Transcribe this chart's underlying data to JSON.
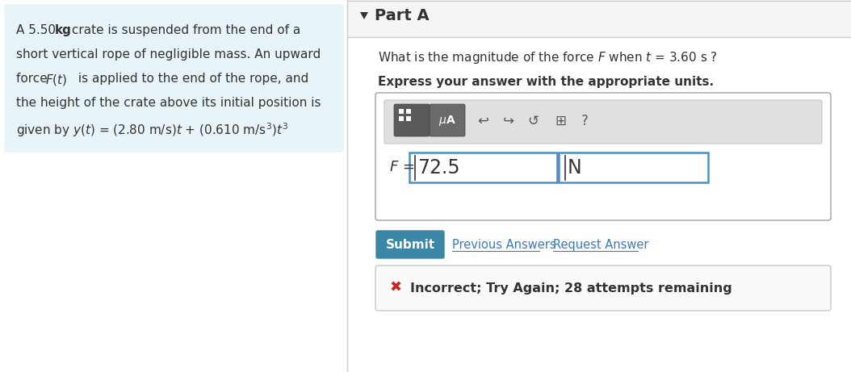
{
  "bg_color": "#ffffff",
  "left_panel_bg": "#e8f4f8",
  "part_a_label": "Part A",
  "bold_text": "Express your answer with the appropriate units.",
  "answer_value": "72.5",
  "answer_units": "N",
  "submit_btn_text": "Submit",
  "submit_btn_color": "#3a87a8",
  "prev_answers_text": "Previous Answers",
  "request_answer_text": "Request Answer",
  "link_color": "#3a7bbf",
  "error_icon": "✖",
  "error_color": "#cc2222",
  "error_text": "Incorrect; Try Again; 28 attempts remaining",
  "input_border_color": "#4a90c4",
  "triangle_color": "#333333",
  "text_color": "#333333"
}
